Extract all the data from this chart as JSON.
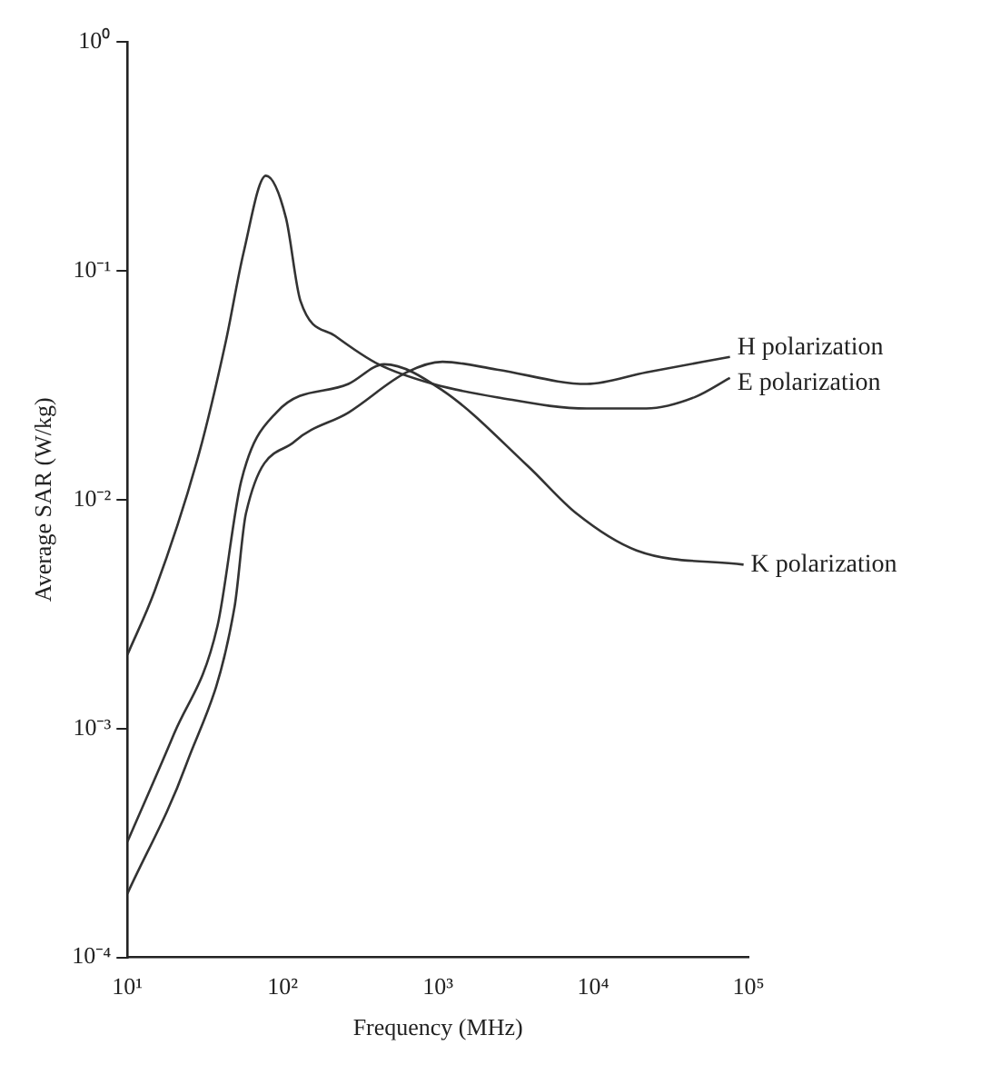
{
  "chart_data": {
    "type": "line",
    "xlabel": "Frequency (MHz)",
    "ylabel": "Average SAR (W/kg)",
    "log": "xy",
    "grid": false,
    "legend": false,
    "marker": "none",
    "line_style": "solid",
    "xlim": [
      10,
      100000
    ],
    "ylim": [
      0.0001,
      1
    ],
    "xticks": [
      {
        "value": 10,
        "label": "10¹"
      },
      {
        "value": 100,
        "label": "10²"
      },
      {
        "value": 1000,
        "label": "10³"
      },
      {
        "value": 10000,
        "label": "10⁴"
      },
      {
        "value": 100000,
        "label": "10⁵"
      }
    ],
    "yticks": [
      {
        "value": 0.0001,
        "label": "10⁻⁴"
      },
      {
        "value": 0.001,
        "label": "10⁻³"
      },
      {
        "value": 0.01,
        "label": "10⁻²"
      },
      {
        "value": 0.1,
        "label": "10⁻¹"
      },
      {
        "value": 1,
        "label": "10⁰"
      }
    ],
    "series": [
      {
        "name": "H polarization",
        "color": "#333333",
        "x": [
          10,
          24,
          49,
          58,
          120,
          265,
          630,
          1070,
          2400,
          9100,
          22000,
          76000
        ],
        "values": [
          0.00019,
          0.0007,
          0.0034,
          0.0087,
          0.018,
          0.024,
          0.036,
          0.04,
          0.037,
          0.032,
          0.036,
          0.042
        ]
      },
      {
        "name": "E polarization",
        "color": "#333333",
        "x": [
          10,
          15,
          29,
          43,
          56,
          78,
          105,
          130,
          217,
          415,
          930,
          2400,
          9100,
          22000,
          45000,
          76000
        ],
        "values": [
          0.0021,
          0.004,
          0.016,
          0.049,
          0.12,
          0.26,
          0.17,
          0.074,
          0.052,
          0.039,
          0.032,
          0.028,
          0.025,
          0.025,
          0.028,
          0.034
        ]
      },
      {
        "name": "K polarization",
        "color": "#333333",
        "x": [
          10,
          20,
          38,
          54,
          91,
          265,
          450,
          1070,
          3800,
          7800,
          19000,
          93000
        ],
        "values": [
          0.00032,
          0.00095,
          0.0028,
          0.012,
          0.024,
          0.032,
          0.039,
          0.03,
          0.014,
          0.0087,
          0.006,
          0.0052
        ]
      }
    ]
  }
}
